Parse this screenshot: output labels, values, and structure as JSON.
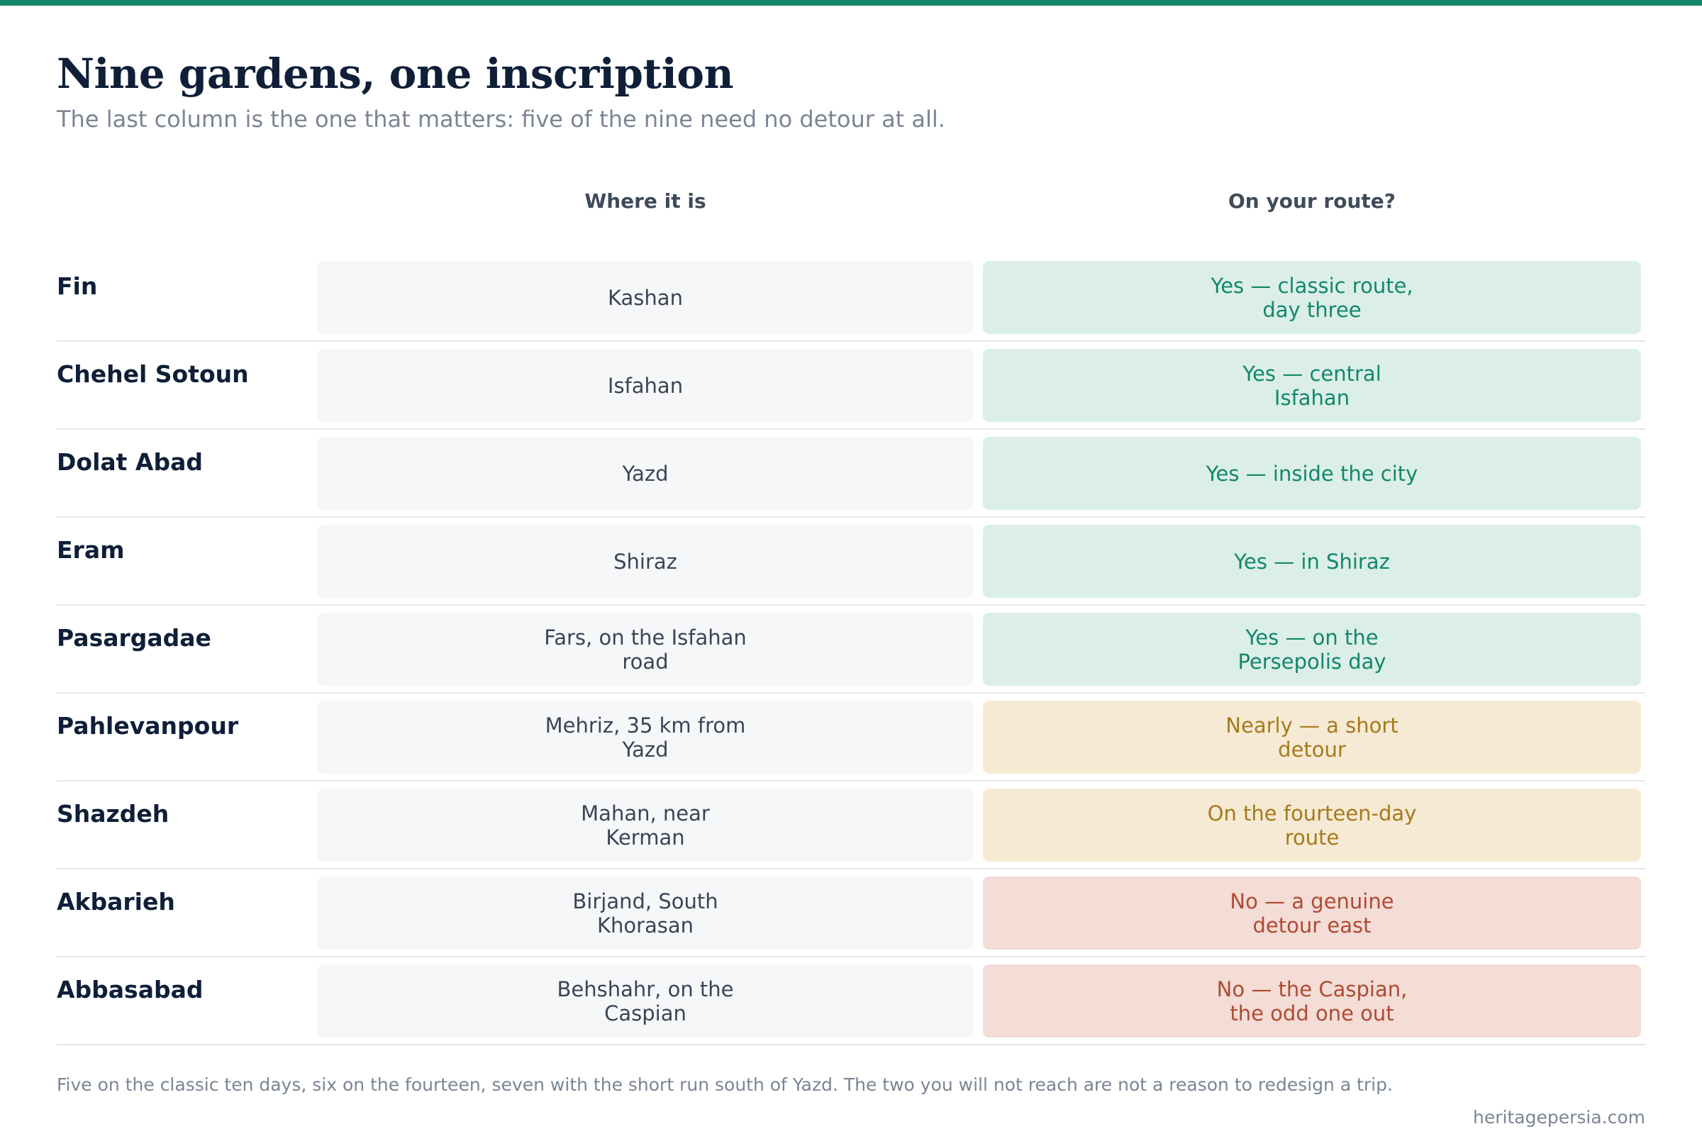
{
  "theme": {
    "accent": "#14876a",
    "yes_bg": "#dbefe8",
    "nearly_bg": "#f6ead4",
    "no_bg": "#f3ddd6"
  },
  "title": "Nine gardens, one inscription",
  "subtitle": "The last column is the one that matters: five of the nine need no detour at all.",
  "table": {
    "headers": {
      "name": "",
      "where": "Where it is",
      "route": "On your route?"
    },
    "rows": [
      {
        "name": "Fin",
        "where": "Kashan",
        "route": "Yes — classic route, day three",
        "status": "yes"
      },
      {
        "name": "Chehel Sotoun",
        "where": "Isfahan",
        "route": "Yes — central Isfahan",
        "status": "yes"
      },
      {
        "name": "Dolat Abad",
        "where": "Yazd",
        "route": "Yes — inside the city",
        "status": "yes"
      },
      {
        "name": "Eram",
        "where": "Shiraz",
        "route": "Yes — in Shiraz",
        "status": "yes"
      },
      {
        "name": "Pasargadae",
        "where": "Fars, on the Isfahan road",
        "route": "Yes — on the Persepolis day",
        "status": "yes"
      },
      {
        "name": "Pahlevanpour",
        "where": "Mehriz, 35 km from Yazd",
        "route": "Nearly — a short detour",
        "status": "nearly"
      },
      {
        "name": "Shazdeh",
        "where": "Mahan, near Kerman",
        "route": "On the fourteen-day route",
        "status": "nearly"
      },
      {
        "name": "Akbarieh",
        "where": "Birjand, South Khorasan",
        "route": "No — a genuine detour east",
        "status": "no"
      },
      {
        "name": "Abbasabad",
        "where": "Behshahr, on the Caspian",
        "route": "No — the Caspian, the odd one out",
        "status": "no"
      }
    ]
  },
  "footnote": "Five on the classic ten days, six on the fourteen, seven with the short run south of Yazd. The two you will not reach are not a reason to redesign a trip.",
  "source": "heritagepersia.com"
}
